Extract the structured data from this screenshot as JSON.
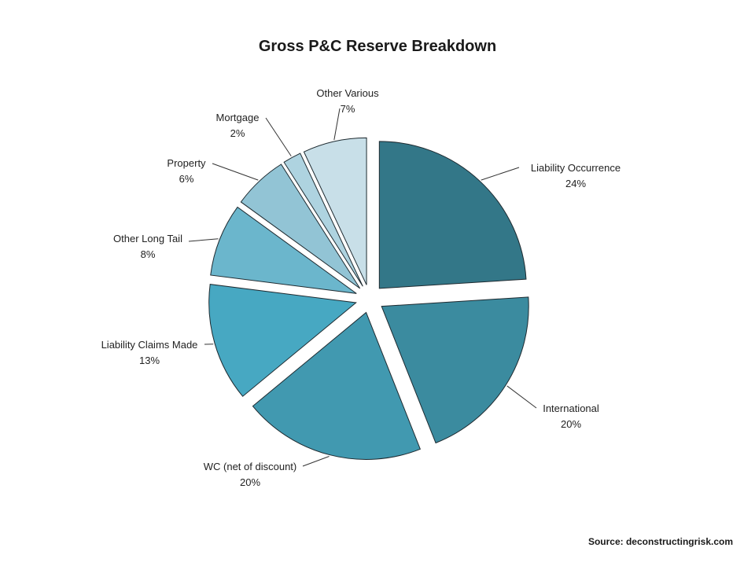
{
  "chart_data": {
    "type": "pie",
    "title": "Gross P&C Reserve Breakdown",
    "slices": [
      {
        "label": "Liability Occurrence",
        "value": 24,
        "pct_label": "24%",
        "color": "#337788"
      },
      {
        "label": "International",
        "value": 20,
        "pct_label": "20%",
        "color": "#3b8b9f"
      },
      {
        "label": "WC (net of discount)",
        "value": 20,
        "pct_label": "20%",
        "color": "#4199b0"
      },
      {
        "label": "Liability Claims Made",
        "value": 13,
        "pct_label": "13%",
        "color": "#47a8c2"
      },
      {
        "label": "Other Long Tail",
        "value": 8,
        "pct_label": "8%",
        "color": "#6bb6cc"
      },
      {
        "label": "Property",
        "value": 6,
        "pct_label": "6%",
        "color": "#92c4d5"
      },
      {
        "label": "Mortgage",
        "value": 2,
        "pct_label": "2%",
        "color": "#aed3e0"
      },
      {
        "label": "Other Various",
        "value": 7,
        "pct_label": "7%",
        "color": "#c8dfe8"
      }
    ],
    "legend": "none",
    "exploded": true
  },
  "source": "Source: deconstructingrisk.com"
}
